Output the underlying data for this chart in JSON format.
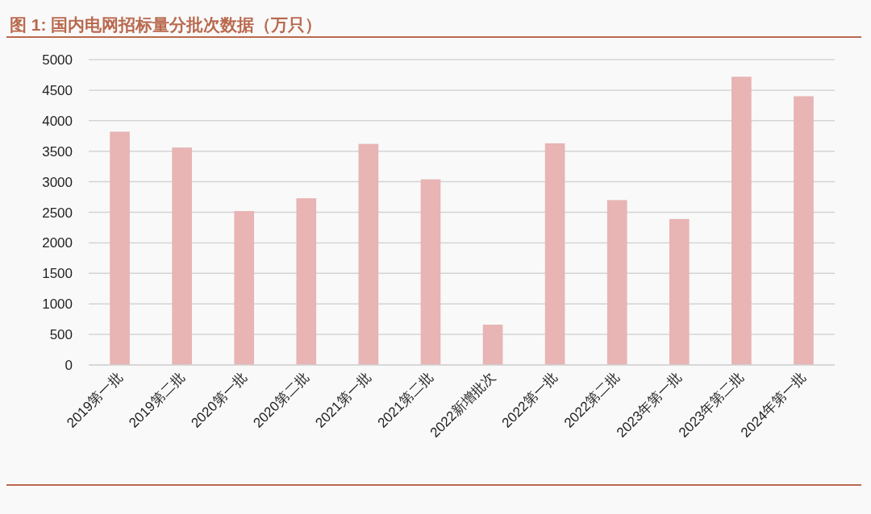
{
  "chart_data": {
    "type": "bar",
    "title": "图 1:  国内电网招标量分批次数据（万只）",
    "categories": [
      "2019第一批",
      "2019第二批",
      "2020第一批",
      "2020第二批",
      "2021第一批",
      "2021第二批",
      "2022新增批次",
      "2022第一批",
      "2022第二批",
      "2023年第一批",
      "2023年第二批",
      "2024年第一批"
    ],
    "values": [
      3820,
      3560,
      2520,
      2730,
      3620,
      3040,
      660,
      3630,
      2700,
      2390,
      4720,
      4400
    ],
    "color": "#e8b4b4",
    "ylim": [
      0,
      5000
    ],
    "yticks": [
      0,
      500,
      1000,
      1500,
      2000,
      2500,
      3000,
      3500,
      4000,
      4500,
      5000
    ],
    "grid": "y"
  }
}
